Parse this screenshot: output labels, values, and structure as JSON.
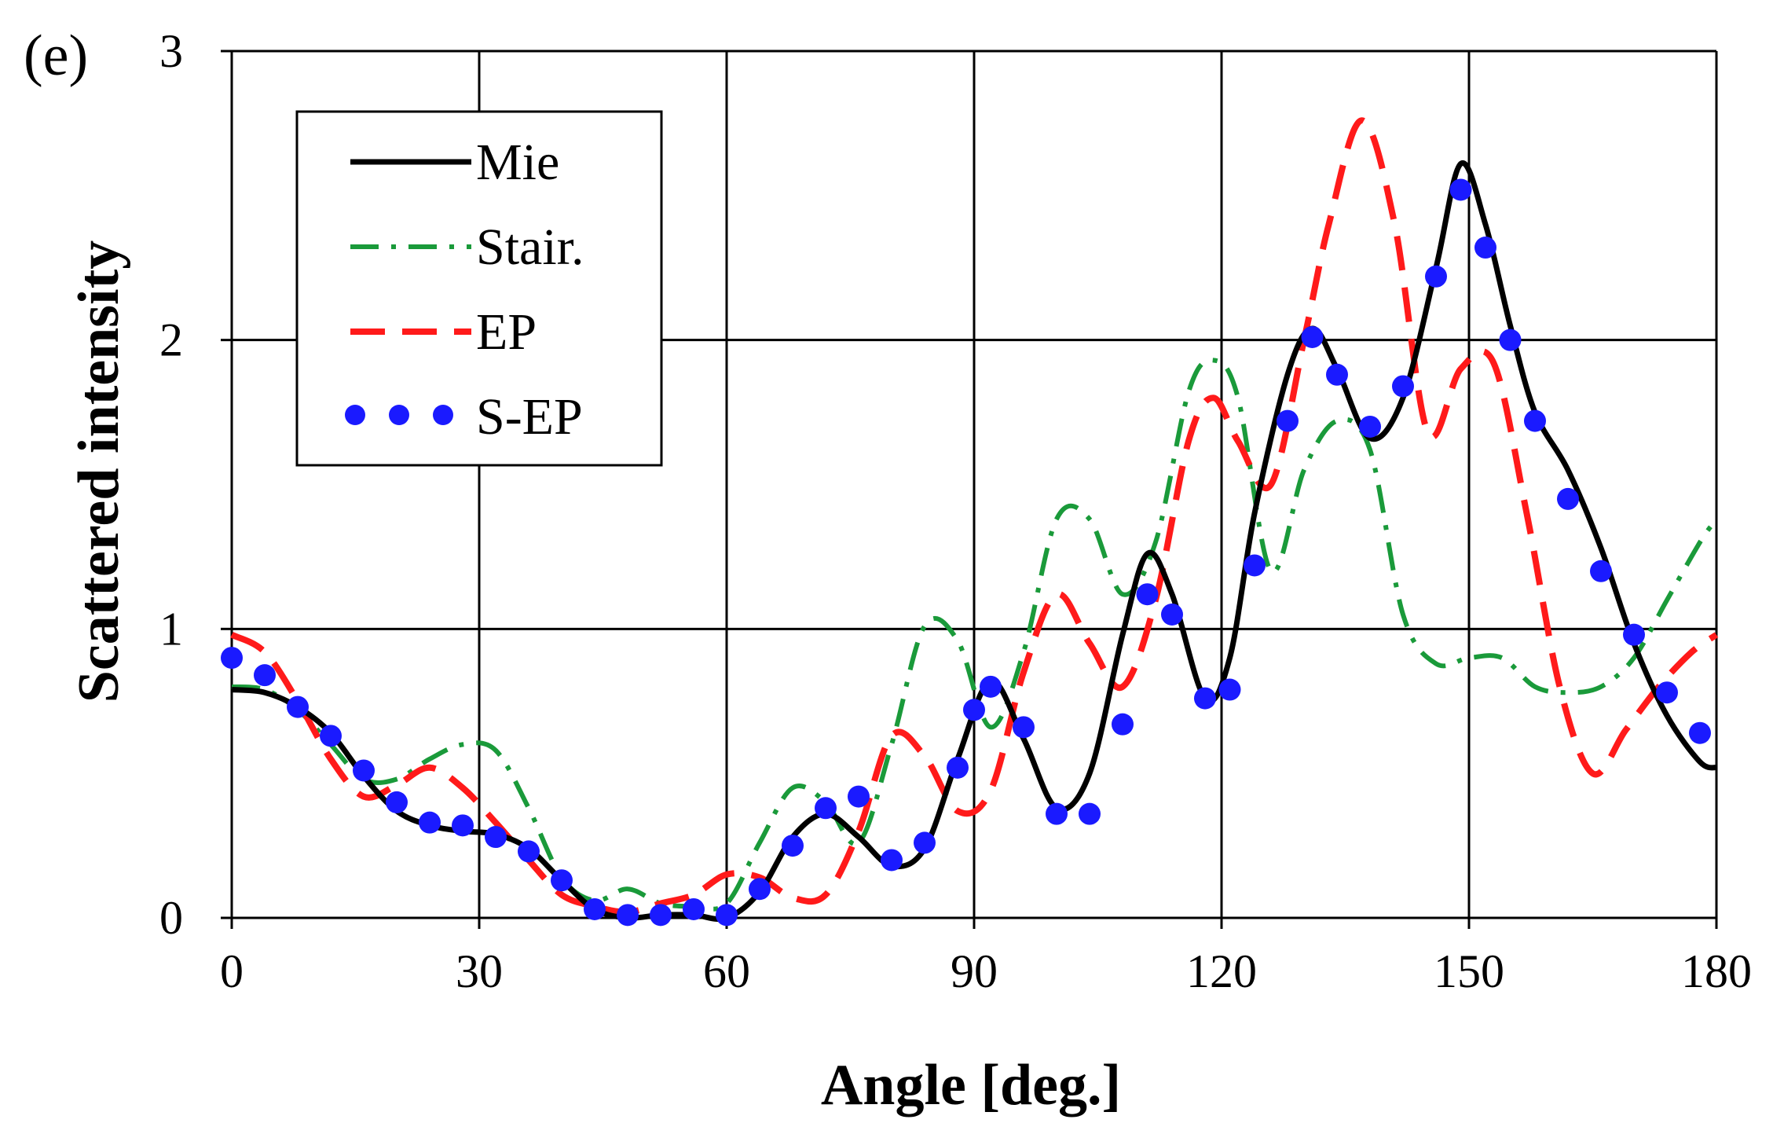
{
  "chart_data": {
    "type": "line",
    "panel_label": "(e)",
    "title": "",
    "xlabel": "Angle [deg.]",
    "ylabel": "Scattered intensity",
    "xlim": [
      0,
      180
    ],
    "ylim": [
      0,
      3
    ],
    "xticks": [
      0,
      30,
      60,
      90,
      120,
      150,
      180
    ],
    "yticks": [
      0,
      1,
      2,
      3
    ],
    "grid": true,
    "legend_position": "top-left",
    "series": [
      {
        "name": "Mie",
        "style": "solid",
        "color": "#000000",
        "x": [
          0,
          4,
          8,
          12,
          16,
          20,
          24,
          28,
          32,
          36,
          40,
          44,
          48,
          52,
          56,
          60,
          64,
          68,
          72,
          76,
          80,
          84,
          88,
          92,
          96,
          100,
          104,
          108,
          111,
          114,
          118,
          121,
          124,
          128,
          131,
          134,
          138,
          142,
          146,
          149,
          152,
          155,
          158,
          162,
          166,
          170,
          174,
          178,
          180
        ],
        "y": [
          0.79,
          0.78,
          0.73,
          0.64,
          0.49,
          0.37,
          0.32,
          0.3,
          0.29,
          0.24,
          0.13,
          0.03,
          0.0,
          0.01,
          0.01,
          0.0,
          0.09,
          0.28,
          0.36,
          0.28,
          0.18,
          0.24,
          0.55,
          0.82,
          0.62,
          0.38,
          0.5,
          0.98,
          1.26,
          1.12,
          0.76,
          0.9,
          1.4,
          1.88,
          2.04,
          1.9,
          1.66,
          1.8,
          2.25,
          2.61,
          2.4,
          2.05,
          1.75,
          1.55,
          1.28,
          0.95,
          0.7,
          0.54,
          0.52
        ]
      },
      {
        "name": "Stair.",
        "style": "dashdot",
        "color": "#1a9a3a",
        "x": [
          0,
          4,
          8,
          12,
          16,
          20,
          24,
          28,
          32,
          36,
          40,
          44,
          48,
          52,
          56,
          60,
          64,
          68,
          72,
          76,
          80,
          84,
          88,
          92,
          96,
          100,
          104,
          108,
          112,
          116,
          119,
          122,
          126,
          130,
          134,
          138,
          142,
          146,
          150,
          154,
          158,
          162,
          166,
          170,
          174,
          178,
          180
        ],
        "y": [
          0.8,
          0.79,
          0.72,
          0.6,
          0.48,
          0.48,
          0.55,
          0.6,
          0.58,
          0.38,
          0.14,
          0.06,
          0.1,
          0.05,
          0.04,
          0.05,
          0.26,
          0.45,
          0.4,
          0.26,
          0.6,
          1.01,
          0.96,
          0.66,
          0.92,
          1.38,
          1.38,
          1.12,
          1.3,
          1.82,
          1.93,
          1.8,
          1.2,
          1.55,
          1.72,
          1.62,
          1.05,
          0.88,
          0.9,
          0.9,
          0.8,
          0.78,
          0.8,
          0.9,
          1.1,
          1.3,
          1.38
        ]
      },
      {
        "name": "EP",
        "style": "dashed",
        "color": "#ff1a1a",
        "x": [
          0,
          4,
          8,
          12,
          16,
          20,
          24,
          28,
          32,
          36,
          40,
          44,
          48,
          52,
          56,
          60,
          64,
          68,
          72,
          76,
          80,
          84,
          88,
          92,
          96,
          100,
          104,
          108,
          112,
          116,
          119,
          122,
          126,
          130,
          133,
          137,
          141,
          145,
          149,
          153,
          157,
          161,
          165,
          169,
          173,
          177,
          180
        ],
        "y": [
          0.98,
          0.92,
          0.75,
          0.55,
          0.42,
          0.46,
          0.52,
          0.45,
          0.33,
          0.2,
          0.08,
          0.04,
          0.02,
          0.05,
          0.08,
          0.15,
          0.14,
          0.07,
          0.08,
          0.3,
          0.63,
          0.56,
          0.37,
          0.44,
          0.85,
          1.12,
          0.95,
          0.8,
          1.1,
          1.65,
          1.8,
          1.65,
          1.5,
          2.0,
          2.4,
          2.76,
          2.4,
          1.68,
          1.9,
          1.92,
          1.4,
          0.8,
          0.5,
          0.65,
          0.8,
          0.92,
          0.98
        ]
      },
      {
        "name": "S-EP",
        "style": "dotted",
        "color": "#1a1aff",
        "x": [
          0,
          4,
          8,
          12,
          16,
          20,
          24,
          28,
          32,
          36,
          40,
          44,
          48,
          52,
          56,
          60,
          64,
          68,
          72,
          76,
          80,
          84,
          88,
          90,
          92,
          96,
          100,
          104,
          108,
          111,
          114,
          118,
          121,
          124,
          128,
          131,
          134,
          138,
          142,
          146,
          149,
          152,
          155,
          158,
          162,
          166,
          170,
          174,
          178
        ],
        "y": [
          0.9,
          0.84,
          0.73,
          0.63,
          0.51,
          0.4,
          0.33,
          0.32,
          0.28,
          0.23,
          0.13,
          0.03,
          0.01,
          0.01,
          0.03,
          0.01,
          0.1,
          0.25,
          0.38,
          0.42,
          0.2,
          0.26,
          0.52,
          0.72,
          0.8,
          0.66,
          0.36,
          0.36,
          0.67,
          1.12,
          1.05,
          0.76,
          0.79,
          1.22,
          1.72,
          2.01,
          1.88,
          1.7,
          1.84,
          2.22,
          2.52,
          2.32,
          2.0,
          1.72,
          1.45,
          1.2,
          0.98,
          0.78,
          0.64
        ]
      }
    ]
  }
}
